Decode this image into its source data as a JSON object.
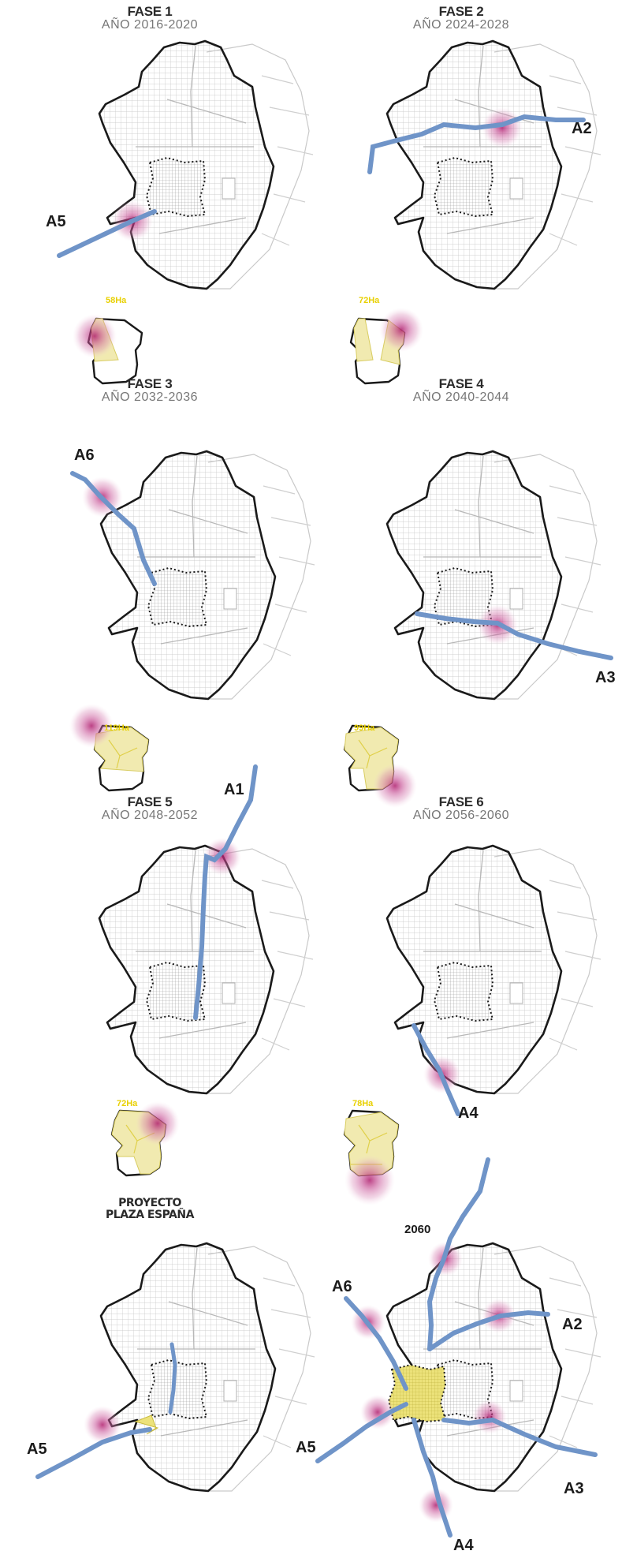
{
  "phases": [
    {
      "fase": "FASE 1",
      "year": "AÑO 2016-2020",
      "axis": "A5",
      "area": "58Ha"
    },
    {
      "fase": "FASE 2",
      "year": "AÑO 2024-2028",
      "axis": "A2",
      "area": "72Ha"
    },
    {
      "fase": "FASE 3",
      "year": "AÑO 2032-2036",
      "axis": "A6",
      "area": "119Ha"
    },
    {
      "fase": "FASE 4",
      "year": "AÑO 2040-2044",
      "axis": "A3",
      "area": "99Ha"
    },
    {
      "fase": "FASE 5",
      "year": "AÑO 2048-2052",
      "axis": "A1",
      "area": "72Ha"
    },
    {
      "fase": "FASE 6",
      "year": "AÑO 2056-2060",
      "axis": "A4",
      "area": "78Ha"
    }
  ],
  "project": {
    "title_line1": "PROYECTO",
    "title_line2": "PLAZA ESPAÑA",
    "axis": "A5"
  },
  "final": {
    "year": "2060",
    "axes": [
      "A6",
      "A2",
      "A5",
      "A3",
      "A4"
    ]
  },
  "colors": {
    "boundary": "#1a1a1a",
    "axis_line": "#6f94c8",
    "node_glow": "#c03a8a",
    "plaza_fill": "#ece27a",
    "parcel_fill": "#f1eab0",
    "street_texture": "#c9c9c9"
  }
}
